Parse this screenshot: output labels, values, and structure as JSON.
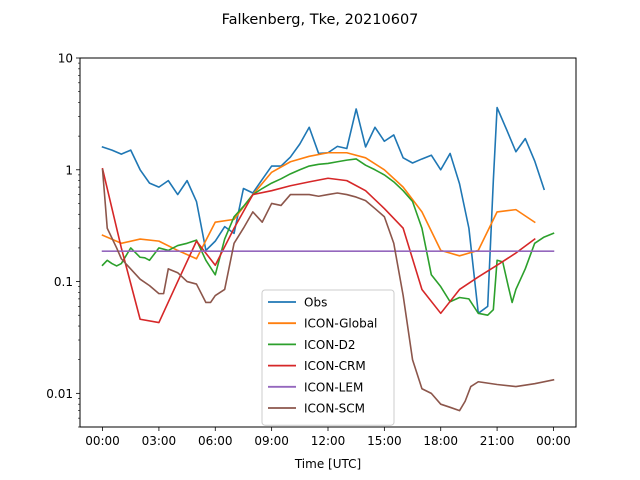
{
  "chart_data": {
    "type": "line",
    "title": "Falkenberg, Tke, 20210607",
    "xlabel": "Time [UTC]",
    "ylabel": "",
    "x_unit": "hours UTC",
    "xlim": [
      -1.2,
      25.2
    ],
    "ylim": [
      0.005,
      10
    ],
    "y_scale": "log",
    "grid": false,
    "legend_placement": "lower center",
    "x_ticks": [
      {
        "value": 0,
        "label": "00:00"
      },
      {
        "value": 3,
        "label": "03:00"
      },
      {
        "value": 6,
        "label": "06:00"
      },
      {
        "value": 9,
        "label": "09:00"
      },
      {
        "value": 12,
        "label": "12:00"
      },
      {
        "value": 15,
        "label": "15:00"
      },
      {
        "value": 18,
        "label": "18:00"
      },
      {
        "value": 21,
        "label": "21:00"
      },
      {
        "value": 24,
        "label": "00:00"
      }
    ],
    "y_ticks": [
      {
        "value": 0.01,
        "label": "0.01"
      },
      {
        "value": 0.1,
        "label": "0.1"
      },
      {
        "value": 1,
        "label": "1"
      },
      {
        "value": 10,
        "label": "10"
      }
    ],
    "series": [
      {
        "name": "Obs",
        "color": "#1f77b4",
        "points": [
          [
            0,
            1.6
          ],
          [
            0.5,
            1.5
          ],
          [
            1,
            1.38
          ],
          [
            1.5,
            1.5
          ],
          [
            2,
            1.0
          ],
          [
            2.5,
            0.76
          ],
          [
            3,
            0.7
          ],
          [
            3.5,
            0.8
          ],
          [
            4,
            0.6
          ],
          [
            4.5,
            0.8
          ],
          [
            5,
            0.52
          ],
          [
            5.5,
            0.19
          ],
          [
            6,
            0.23
          ],
          [
            6.5,
            0.31
          ],
          [
            7,
            0.27
          ],
          [
            7.5,
            0.68
          ],
          [
            8,
            0.62
          ],
          [
            8.5,
            0.82
          ],
          [
            9,
            1.08
          ],
          [
            9.5,
            1.08
          ],
          [
            10,
            1.3
          ],
          [
            10.5,
            1.7
          ],
          [
            11,
            2.4
          ],
          [
            11.5,
            1.4
          ],
          [
            12,
            1.42
          ],
          [
            12.5,
            1.62
          ],
          [
            13,
            1.55
          ],
          [
            13.5,
            3.5
          ],
          [
            14,
            1.6
          ],
          [
            14.5,
            2.4
          ],
          [
            15,
            1.8
          ],
          [
            15.5,
            2.05
          ],
          [
            16,
            1.28
          ],
          [
            16.5,
            1.15
          ],
          [
            17,
            1.25
          ],
          [
            17.5,
            1.35
          ],
          [
            18,
            1.0
          ],
          [
            18.5,
            1.4
          ],
          [
            19,
            0.75
          ],
          [
            19.5,
            0.3
          ],
          [
            20,
            0.052
          ],
          [
            20.5,
            0.06
          ],
          [
            20.8,
            0.8
          ],
          [
            21,
            3.6
          ],
          [
            21.5,
            2.3
          ],
          [
            22,
            1.45
          ],
          [
            22.5,
            1.9
          ],
          [
            23,
            1.2
          ],
          [
            23.5,
            0.67
          ]
        ]
      },
      {
        "name": "ICON-Global",
        "color": "#ff7f0e",
        "points": [
          [
            0,
            0.26
          ],
          [
            1,
            0.22
          ],
          [
            2,
            0.24
          ],
          [
            3,
            0.23
          ],
          [
            4,
            0.19
          ],
          [
            5,
            0.16
          ],
          [
            6,
            0.34
          ],
          [
            7,
            0.36
          ],
          [
            8,
            0.6
          ],
          [
            9,
            0.95
          ],
          [
            10,
            1.18
          ],
          [
            11,
            1.32
          ],
          [
            12,
            1.42
          ],
          [
            13,
            1.42
          ],
          [
            14,
            1.28
          ],
          [
            15,
            1.0
          ],
          [
            16,
            0.7
          ],
          [
            17,
            0.42
          ],
          [
            18,
            0.19
          ],
          [
            19,
            0.17
          ],
          [
            20,
            0.19
          ],
          [
            21,
            0.42
          ],
          [
            22,
            0.44
          ],
          [
            23,
            0.34
          ]
        ]
      },
      {
        "name": "ICON-D2",
        "color": "#2ca02c",
        "points": [
          [
            0,
            0.14
          ],
          [
            0.25,
            0.155
          ],
          [
            0.5,
            0.145
          ],
          [
            0.75,
            0.138
          ],
          [
            1,
            0.145
          ],
          [
            1.5,
            0.2
          ],
          [
            2,
            0.165
          ],
          [
            2.25,
            0.163
          ],
          [
            2.5,
            0.155
          ],
          [
            3,
            0.2
          ],
          [
            3.5,
            0.19
          ],
          [
            4,
            0.21
          ],
          [
            4.5,
            0.22
          ],
          [
            5,
            0.235
          ],
          [
            5.5,
            0.155
          ],
          [
            6,
            0.115
          ],
          [
            6.5,
            0.24
          ],
          [
            7,
            0.38
          ],
          [
            7.5,
            0.47
          ],
          [
            8,
            0.6
          ],
          [
            8.5,
            0.68
          ],
          [
            9,
            0.76
          ],
          [
            9.5,
            0.83
          ],
          [
            10,
            0.92
          ],
          [
            10.5,
            1.0
          ],
          [
            11,
            1.08
          ],
          [
            11.5,
            1.12
          ],
          [
            12,
            1.14
          ],
          [
            12.5,
            1.18
          ],
          [
            13,
            1.22
          ],
          [
            13.5,
            1.25
          ],
          [
            14,
            1.1
          ],
          [
            14.5,
            1.0
          ],
          [
            15,
            0.9
          ],
          [
            15.5,
            0.78
          ],
          [
            16,
            0.65
          ],
          [
            16.5,
            0.52
          ],
          [
            17,
            0.3
          ],
          [
            17.5,
            0.115
          ],
          [
            18,
            0.09
          ],
          [
            18.5,
            0.066
          ],
          [
            19,
            0.072
          ],
          [
            19.5,
            0.07
          ],
          [
            20,
            0.052
          ],
          [
            20.5,
            0.05
          ],
          [
            20.8,
            0.056
          ],
          [
            21,
            0.155
          ],
          [
            21.3,
            0.15
          ],
          [
            21.6,
            0.09
          ],
          [
            21.8,
            0.065
          ],
          [
            22,
            0.085
          ],
          [
            22.5,
            0.13
          ],
          [
            23,
            0.22
          ],
          [
            23.5,
            0.25
          ],
          [
            24,
            0.27
          ]
        ]
      },
      {
        "name": "ICON-CRM",
        "color": "#d62728",
        "points": [
          [
            0,
            1.02
          ],
          [
            1,
            0.2
          ],
          [
            2,
            0.046
          ],
          [
            3,
            0.043
          ],
          [
            4,
            0.1
          ],
          [
            5,
            0.23
          ],
          [
            6,
            0.14
          ],
          [
            7,
            0.3
          ],
          [
            8,
            0.6
          ],
          [
            9,
            0.65
          ],
          [
            10,
            0.72
          ],
          [
            11,
            0.78
          ],
          [
            12,
            0.84
          ],
          [
            13,
            0.8
          ],
          [
            14,
            0.65
          ],
          [
            15,
            0.45
          ],
          [
            16,
            0.3
          ],
          [
            17,
            0.085
          ],
          [
            18,
            0.052
          ],
          [
            19,
            0.085
          ],
          [
            20,
            0.11
          ],
          [
            21,
            0.14
          ],
          [
            22,
            0.18
          ],
          [
            23,
            0.24
          ]
        ]
      },
      {
        "name": "ICON-LEM",
        "color": "#9467bd",
        "points": [
          [
            0,
            0.187
          ],
          [
            24,
            0.187
          ]
        ]
      },
      {
        "name": "ICON-SCM",
        "color": "#8c564b",
        "points": [
          [
            0,
            1.0
          ],
          [
            0.25,
            0.3
          ],
          [
            0.75,
            0.2
          ],
          [
            1,
            0.16
          ],
          [
            2,
            0.105
          ],
          [
            2.5,
            0.092
          ],
          [
            3,
            0.078
          ],
          [
            3.25,
            0.078
          ],
          [
            3.5,
            0.13
          ],
          [
            4,
            0.12
          ],
          [
            4.5,
            0.1
          ],
          [
            5,
            0.095
          ],
          [
            5.5,
            0.065
          ],
          [
            5.75,
            0.065
          ],
          [
            6,
            0.075
          ],
          [
            6.5,
            0.085
          ],
          [
            7,
            0.22
          ],
          [
            7.5,
            0.3
          ],
          [
            8,
            0.42
          ],
          [
            8.5,
            0.34
          ],
          [
            9,
            0.5
          ],
          [
            9.5,
            0.48
          ],
          [
            10,
            0.6
          ],
          [
            10.5,
            0.6
          ],
          [
            11,
            0.6
          ],
          [
            11.5,
            0.58
          ],
          [
            12,
            0.6
          ],
          [
            12.5,
            0.62
          ],
          [
            13,
            0.6
          ],
          [
            13.5,
            0.57
          ],
          [
            14,
            0.53
          ],
          [
            14.5,
            0.45
          ],
          [
            15,
            0.38
          ],
          [
            15.5,
            0.22
          ],
          [
            16,
            0.075
          ],
          [
            16.5,
            0.02
          ],
          [
            17,
            0.011
          ],
          [
            17.5,
            0.01
          ],
          [
            18,
            0.008
          ],
          [
            18.5,
            0.0075
          ],
          [
            19,
            0.007
          ],
          [
            19.3,
            0.0085
          ],
          [
            19.6,
            0.0115
          ],
          [
            20,
            0.0127
          ],
          [
            21,
            0.012
          ],
          [
            22,
            0.0115
          ],
          [
            23,
            0.0122
          ],
          [
            24,
            0.0132
          ]
        ]
      }
    ]
  }
}
